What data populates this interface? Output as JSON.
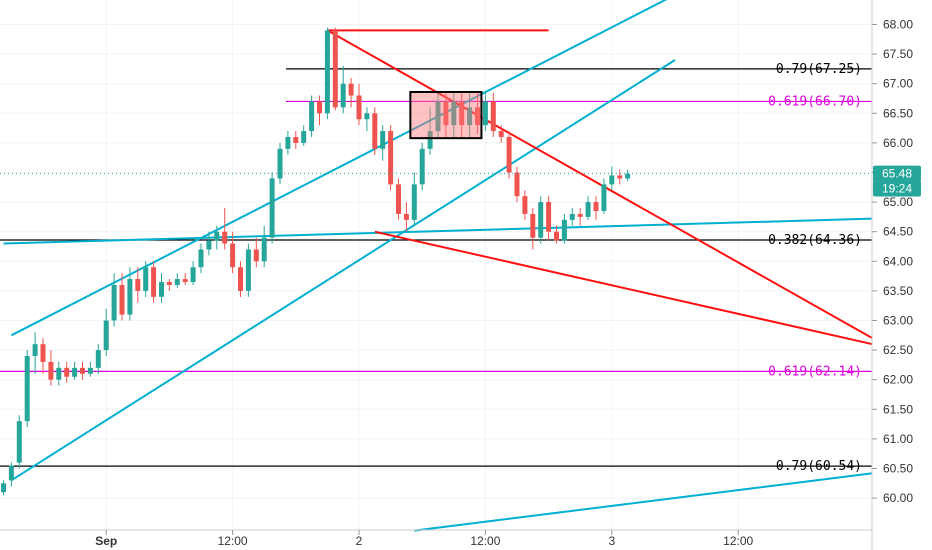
{
  "chart_data": {
    "type": "candlestick",
    "y_range": [
      59.5,
      68.3
    ],
    "y_ticks": [
      "60.00",
      "60.50",
      "61.00",
      "61.50",
      "62.00",
      "62.50",
      "63.00",
      "63.50",
      "64.00",
      "64.50",
      "65.00",
      "65.50",
      "66.00",
      "66.50",
      "67.00",
      "67.50",
      "68.00"
    ],
    "x_range": [
      0,
      110
    ],
    "x_ticks": [
      {
        "label": "Sep",
        "x": 13
      },
      {
        "label": "12:00",
        "x": 29
      },
      {
        "label": "2",
        "x": 45
      },
      {
        "label": "12:00",
        "x": 61
      },
      {
        "label": "3",
        "x": 77
      },
      {
        "label": "12:00",
        "x": 93
      }
    ],
    "candles": [
      [
        0,
        60.1,
        60.25,
        60.05,
        60.3
      ],
      [
        1,
        60.3,
        60.55,
        60.2,
        60.6
      ],
      [
        2,
        60.6,
        61.3,
        60.5,
        61.4
      ],
      [
        3,
        61.3,
        62.4,
        61.2,
        62.5
      ],
      [
        4,
        62.4,
        62.6,
        62.1,
        62.8
      ],
      [
        5,
        62.6,
        62.3,
        62.1,
        62.7
      ],
      [
        6,
        62.3,
        62.0,
        61.9,
        62.5
      ],
      [
        7,
        62.0,
        62.2,
        61.9,
        62.3
      ],
      [
        8,
        62.2,
        62.05,
        61.95,
        62.3
      ],
      [
        9,
        62.05,
        62.2,
        62.0,
        62.3
      ],
      [
        10,
        62.2,
        62.1,
        62.0,
        62.3
      ],
      [
        11,
        62.1,
        62.2,
        62.05,
        62.3
      ],
      [
        12,
        62.2,
        62.5,
        62.1,
        62.6
      ],
      [
        13,
        62.5,
        63.0,
        62.4,
        63.2
      ],
      [
        14,
        63.0,
        63.6,
        62.9,
        63.8
      ],
      [
        15,
        63.6,
        63.1,
        63.0,
        63.8
      ],
      [
        16,
        63.1,
        63.7,
        63.0,
        63.9
      ],
      [
        17,
        63.7,
        63.5,
        63.3,
        63.9
      ],
      [
        18,
        63.5,
        63.9,
        63.4,
        64.0
      ],
      [
        19,
        63.9,
        63.4,
        63.3,
        64.0
      ],
      [
        20,
        63.4,
        63.65,
        63.3,
        63.8
      ],
      [
        21,
        63.65,
        63.6,
        63.5,
        63.7
      ],
      [
        22,
        63.6,
        63.7,
        63.55,
        63.8
      ],
      [
        23,
        63.7,
        63.65,
        63.6,
        63.8
      ],
      [
        24,
        63.65,
        63.9,
        63.6,
        64.0
      ],
      [
        25,
        63.9,
        64.2,
        63.8,
        64.3
      ],
      [
        26,
        64.2,
        64.35,
        64.1,
        64.5
      ],
      [
        27,
        64.35,
        64.5,
        64.2,
        64.6
      ],
      [
        28,
        64.5,
        64.3,
        64.2,
        64.9
      ],
      [
        29,
        64.3,
        63.9,
        63.8,
        64.5
      ],
      [
        30,
        63.9,
        63.5,
        63.4,
        64.0
      ],
      [
        31,
        63.5,
        64.2,
        63.4,
        64.3
      ],
      [
        32,
        64.2,
        64.0,
        63.9,
        64.4
      ],
      [
        33,
        64.0,
        64.4,
        63.9,
        64.6
      ],
      [
        34,
        64.4,
        65.4,
        64.3,
        65.5
      ],
      [
        35,
        65.4,
        65.9,
        65.3,
        66.0
      ],
      [
        36,
        65.9,
        66.1,
        65.8,
        66.2
      ],
      [
        37,
        66.1,
        66.0,
        65.9,
        66.2
      ],
      [
        38,
        66.0,
        66.2,
        65.95,
        66.3
      ],
      [
        39,
        66.2,
        66.7,
        66.1,
        66.8
      ],
      [
        40,
        66.7,
        66.5,
        66.3,
        66.8
      ],
      [
        41,
        66.5,
        67.9,
        66.4,
        67.95
      ],
      [
        42,
        67.9,
        66.6,
        66.55,
        67.95
      ],
      [
        43,
        66.6,
        67.0,
        66.5,
        67.3
      ],
      [
        44,
        67.0,
        66.8,
        66.6,
        67.1
      ],
      [
        45,
        66.8,
        66.4,
        66.3,
        67.0
      ],
      [
        46,
        66.4,
        66.5,
        66.2,
        66.6
      ],
      [
        47,
        66.5,
        65.9,
        65.8,
        66.6
      ],
      [
        48,
        65.9,
        66.2,
        65.7,
        66.3
      ],
      [
        49,
        66.2,
        65.3,
        65.2,
        66.3
      ],
      [
        50,
        65.3,
        64.8,
        64.7,
        65.4
      ],
      [
        51,
        64.8,
        64.7,
        64.5,
        65.0
      ],
      [
        52,
        64.7,
        65.3,
        64.6,
        65.5
      ],
      [
        53,
        65.3,
        65.9,
        65.2,
        66.0
      ],
      [
        54,
        65.9,
        66.2,
        65.8,
        66.6
      ],
      [
        55,
        66.2,
        66.7,
        66.1,
        66.85
      ],
      [
        56,
        66.7,
        66.3,
        66.1,
        66.85
      ],
      [
        57,
        66.3,
        66.7,
        66.1,
        66.85
      ],
      [
        58,
        66.7,
        66.3,
        66.1,
        66.85
      ],
      [
        59,
        66.3,
        66.6,
        66.1,
        66.85
      ],
      [
        60,
        66.6,
        66.3,
        66.15,
        66.85
      ],
      [
        61,
        66.3,
        66.7,
        66.2,
        66.85
      ],
      [
        62,
        66.7,
        66.2,
        66.1,
        66.85
      ],
      [
        63,
        66.2,
        66.1,
        66.0,
        66.3
      ],
      [
        64,
        66.1,
        65.5,
        65.4,
        66.2
      ],
      [
        65,
        65.5,
        65.1,
        65.0,
        65.6
      ],
      [
        66,
        65.1,
        64.8,
        64.7,
        65.2
      ],
      [
        67,
        64.8,
        64.4,
        64.2,
        64.9
      ],
      [
        68,
        64.4,
        65.0,
        64.3,
        65.1
      ],
      [
        69,
        65.0,
        64.5,
        64.35,
        65.1
      ],
      [
        70,
        64.5,
        64.35,
        64.3,
        64.6
      ],
      [
        71,
        64.35,
        64.7,
        64.3,
        64.8
      ],
      [
        72,
        64.7,
        64.8,
        64.6,
        64.9
      ],
      [
        73,
        64.8,
        64.75,
        64.6,
        64.9
      ],
      [
        74,
        64.75,
        65.0,
        64.7,
        65.1
      ],
      [
        75,
        65.0,
        64.85,
        64.7,
        65.1
      ],
      [
        76,
        64.85,
        65.3,
        64.8,
        65.4
      ],
      [
        77,
        65.3,
        65.45,
        65.2,
        65.6
      ],
      [
        78,
        65.45,
        65.4,
        65.3,
        65.55
      ],
      [
        79,
        65.4,
        65.48,
        65.35,
        65.55
      ]
    ],
    "price_labels": [
      {
        "text": "65.48",
        "value": 65.48,
        "color": "#26a69a"
      },
      {
        "text": "19:24",
        "value": 65.23,
        "color": "#26a69a"
      }
    ],
    "h_levels": [
      {
        "label": "0.79(67.25)",
        "value": 67.25,
        "color": "#000000"
      },
      {
        "label": "0.619(66.70)",
        "value": 66.7,
        "color": "#e000e0"
      },
      {
        "label": "0.382(64.36)",
        "value": 64.36,
        "color": "#000000"
      },
      {
        "label": "0.619(62.14)",
        "value": 62.14,
        "color": "#e000e0"
      },
      {
        "label": "0.79(60.54)",
        "value": 60.54,
        "color": "#000000"
      }
    ],
    "trend_lines": [
      {
        "color": "#00b0d0",
        "points": [
          [
            1,
            62.75
          ],
          [
            85,
            68.5
          ]
        ]
      },
      {
        "color": "#00b0d0",
        "points": [
          [
            1,
            60.3
          ],
          [
            85,
            67.4
          ]
        ]
      },
      {
        "color": "#00b0d0",
        "points": [
          [
            0,
            64.3
          ],
          [
            110,
            64.72
          ]
        ]
      },
      {
        "color": "#00b0d0",
        "points": [
          [
            52,
            59.45
          ],
          [
            110,
            60.42
          ]
        ]
      },
      {
        "color": "#ff1010",
        "points": [
          [
            41,
            67.9
          ],
          [
            110,
            62.7
          ]
        ]
      },
      {
        "color": "#ff1010",
        "points": [
          [
            47,
            64.5
          ],
          [
            110,
            62.6
          ]
        ]
      },
      {
        "color": "#ff1010",
        "points": [
          [
            41,
            67.9
          ],
          [
            69,
            67.9
          ]
        ]
      }
    ],
    "highlight_box": {
      "x0": 51.5,
      "x1": 60.5,
      "y0": 66.08,
      "y1": 66.86
    }
  }
}
